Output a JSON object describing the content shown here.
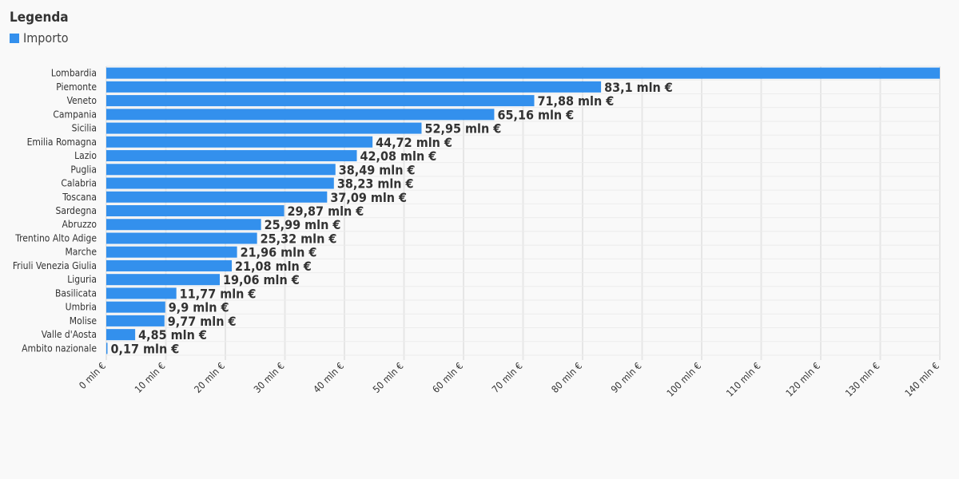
{
  "legend": {
    "title": "Legenda",
    "items": [
      {
        "label": "Importo",
        "color": "#3390ed"
      }
    ]
  },
  "chart_data": {
    "type": "bar",
    "orientation": "horizontal",
    "categories": [
      "Lombardia",
      "Piemonte",
      "Veneto",
      "Campania",
      "Sicilia",
      "Emilia Romagna",
      "Lazio",
      "Puglia",
      "Calabria",
      "Toscana",
      "Sardegna",
      "Abruzzo",
      "Trentino Alto Adige",
      "Marche",
      "Friuli Venezia Giulia",
      "Liguria",
      "Basilicata",
      "Umbria",
      "Molise",
      "Valle d'Aosta",
      "Ambito nazionale"
    ],
    "series": [
      {
        "name": "Importo",
        "color": "#3390ed",
        "values": [
          140,
          83.1,
          71.88,
          65.16,
          52.95,
          44.72,
          42.08,
          38.49,
          38.23,
          37.09,
          29.87,
          25.99,
          25.32,
          21.96,
          21.08,
          19.06,
          11.77,
          9.9,
          9.77,
          4.85,
          0.17
        ],
        "labels": [
          "",
          "83,1 mln €",
          "71,88 mln €",
          "65,16 mln €",
          "52,95 mln €",
          "44,72 mln €",
          "42,08 mln €",
          "38,49 mln €",
          "38,23 mln €",
          "37,09 mln €",
          "29,87 mln €",
          "25,99 mln €",
          "25,32 mln €",
          "21,96 mln €",
          "21,08 mln €",
          "19,06 mln €",
          "11,77 mln €",
          "9,9 mln €",
          "9,77 mln €",
          "4,85 mln €",
          "0,17 mln €"
        ]
      }
    ],
    "xlim": [
      0,
      140
    ],
    "x_ticks": [
      0,
      10,
      20,
      30,
      40,
      50,
      60,
      70,
      80,
      90,
      100,
      110,
      120,
      130,
      140
    ],
    "x_tick_labels": [
      "0 mln €",
      "10 mln €",
      "20 mln €",
      "30 mln €",
      "40 mln €",
      "50 mln €",
      "60 mln €",
      "70 mln €",
      "80 mln €",
      "90 mln €",
      "100 mln €",
      "110 mln €",
      "120 mln €",
      "130 mln €",
      "140 mln €"
    ],
    "grid": true,
    "legend_position": "top-left"
  }
}
